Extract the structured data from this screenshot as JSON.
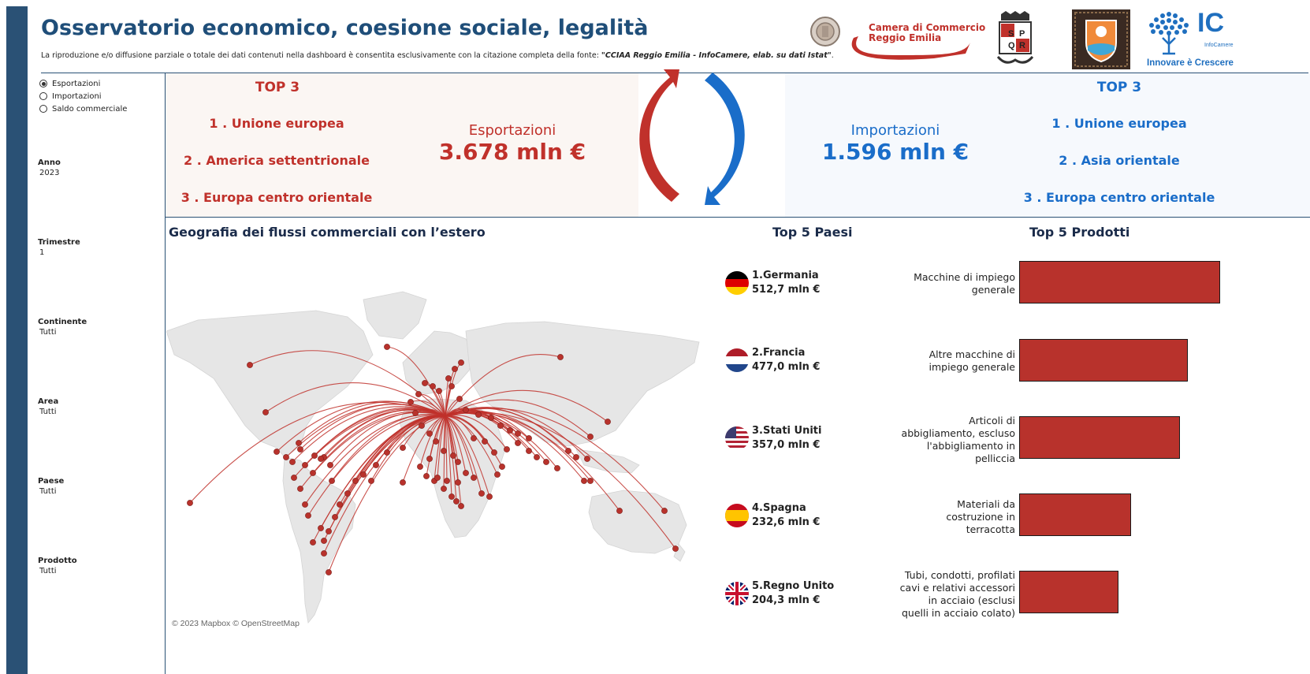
{
  "header": {
    "title": "Osservatorio economico, coesione sociale, legalità",
    "disclaimer": "La riproduzione e/o diffusione parziale o totale dei dati contenuti nella dashboard è consentita esclusivamente con la citazione completa della fonte: ",
    "disclaimer_source": "\"CCIAA Reggio Emilia - InfoCamere, elab. su dati Istat\"",
    "disclaimer_end": "."
  },
  "logos": {
    "cciaa_line1": "Camera di Commercio",
    "cciaa_line2": "Reggio Emilia",
    "spqr": [
      "S",
      "P",
      "Q",
      "R"
    ],
    "ic_text": "IC",
    "ic_small": "InfoCamere",
    "ic_tagline": "Innovare è Crescere"
  },
  "sidebar": {
    "flow_options": [
      {
        "label": "Esportazioni",
        "selected": true
      },
      {
        "label": "Importazioni",
        "selected": false
      },
      {
        "label": "Saldo commerciale",
        "selected": false
      }
    ],
    "filters": [
      {
        "label": "Anno",
        "value": "2023"
      },
      {
        "label": "Trimestre",
        "value": "1"
      },
      {
        "label": "Continente",
        "value": "Tutti"
      },
      {
        "label": "Area",
        "value": "Tutti"
      },
      {
        "label": "Paese",
        "value": "Tutti"
      },
      {
        "label": "Prodotto",
        "value": "Tutti"
      }
    ]
  },
  "exports": {
    "top3_title": "TOP 3",
    "top3": [
      "1 . Unione europea",
      "2 . America settentrionale",
      "3 . Europa centro orientale"
    ],
    "label": "Esportazioni",
    "value": "3.678 mln €"
  },
  "imports": {
    "top3_title": "TOP 3",
    "top3": [
      "1 . Unione europea",
      "2 . Asia orientale",
      "3 . Europa centro orientale"
    ],
    "label": "Importazioni",
    "value": "1.596 mln €"
  },
  "map": {
    "title": "Geografia dei flussi commerciali con l’estero",
    "credit": "© 2023 Mapbox © OpenStreetMap"
  },
  "top_countries": {
    "title": "Top 5 Paesi",
    "items": [
      {
        "name": "1.Germania",
        "value": "512,7 mln €",
        "flag": "de"
      },
      {
        "name": "2.Francia",
        "value": "477,0 mln €",
        "flag": "fr"
      },
      {
        "name": "3.Stati Uniti",
        "value": "357,0 mln €",
        "flag": "us"
      },
      {
        "name": "4.Spagna",
        "value": "232,6 mln €",
        "flag": "es"
      },
      {
        "name": "5.Regno Unito",
        "value": "204,3 mln €",
        "flag": "uk"
      }
    ]
  },
  "top_products": {
    "title": "Top 5 Prodotti",
    "items": [
      {
        "label": "Macchine di impiego generale",
        "share": 1.0
      },
      {
        "label": "Altre macchine di impiego generale",
        "share": 0.84
      },
      {
        "label": "Articoli di abbigliamento, escluso l'abbigliamento in pelliccia",
        "share": 0.8
      },
      {
        "label": "Materiali da costruzione in terracotta",
        "share": 0.555
      },
      {
        "label": "Tubi, condotti, profilati cavi e relativi accessori in acciaio (esclusi quelli in acciaio colato)",
        "share": 0.495
      }
    ]
  },
  "colors": {
    "export": "#c0312b",
    "import": "#1a6dc9",
    "nav": "#2a5175",
    "bar": "#b8322c"
  }
}
